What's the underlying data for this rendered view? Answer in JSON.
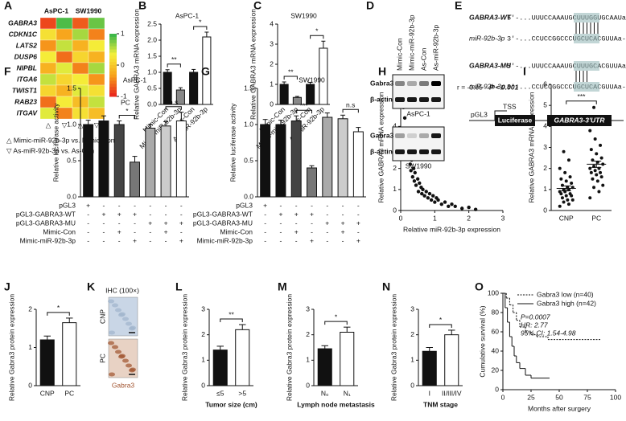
{
  "chart_data": [
    {
      "type": "heatmap",
      "panel": "A",
      "column_groups": [
        "AsPC-1",
        "SW1990"
      ],
      "rows": [
        "GABRA3",
        "CDKN1C",
        "LATS2",
        "DUSP6",
        "NIPBL",
        "ITGA6",
        "TWIST1",
        "RAB23",
        "ITGAV"
      ],
      "values": [
        [
          -0.8,
          0.9,
          -0.7,
          0.8
        ],
        [
          0.2,
          -0.3,
          0.6,
          -0.5
        ],
        [
          -0.4,
          0.5,
          -0.2,
          0.3
        ],
        [
          0.3,
          -0.6,
          0.1,
          -0.2
        ],
        [
          -0.2,
          0.4,
          -0.5,
          0.6
        ],
        [
          0.5,
          0.1,
          0.3,
          -0.4
        ],
        [
          0.1,
          -0.2,
          0.4,
          0.2
        ],
        [
          -0.6,
          0.3,
          -0.1,
          0.5
        ],
        [
          0.4,
          -0.5,
          0.2,
          -0.1
        ]
      ],
      "zlim": [
        -1,
        1
      ],
      "zticks": [
        1,
        0,
        -1
      ],
      "colors": [
        "#e8201c",
        "#f7a21b",
        "#f5f03a",
        "#2fb34a"
      ],
      "colorbar_label": "PC",
      "markers": [
        "△",
        "▽",
        "△",
        "▽"
      ],
      "legend": [
        "△  Mimic-miR-92b-3p vs. Mimic-Con",
        "▽  As-miR-92b-3p vs. As-Con"
      ]
    },
    {
      "type": "bar",
      "panel": "B",
      "title": "AsPC-1",
      "ylabel": "Relative GABRA3 mRNA expression",
      "categories": [
        "Mimic-Con",
        "Mimic-miR-92b-3p",
        "As-Con",
        "As-miR-92b-3p"
      ],
      "values": [
        1.0,
        0.45,
        1.0,
        2.1
      ],
      "errors": [
        0.08,
        0.07,
        0.09,
        0.15
      ],
      "colors": [
        "#111111",
        "#888888",
        "#111111",
        "#ffffff"
      ],
      "ylim": [
        0,
        2.5
      ],
      "yticks": [
        {
          "value": 0,
          "label": "0.0"
        },
        {
          "value": 0.5,
          "label": "0.5"
        },
        {
          "value": 1,
          "label": "1.0"
        },
        {
          "value": 1.5,
          "label": "1.5"
        },
        {
          "value": 2,
          "label": "2.0"
        },
        {
          "value": 2.5,
          "label": "2.5"
        }
      ],
      "annotations": [
        "**",
        "*"
      ]
    },
    {
      "type": "bar",
      "panel": "C",
      "title": "SW1990",
      "ylabel": "Relative GABRA3 mRNA expression",
      "categories": [
        "Mimic-Con",
        "Mimic-miR-92b-3p",
        "As-Con",
        "As-miR-92b-3p"
      ],
      "values": [
        1.0,
        0.35,
        1.0,
        2.8
      ],
      "errors": [
        0.12,
        0.05,
        0.1,
        0.35
      ],
      "colors": [
        "#111111",
        "#888888",
        "#111111",
        "#ffffff"
      ],
      "ylim": [
        0,
        4
      ],
      "yticks": [
        0,
        1,
        2,
        3,
        4
      ],
      "annotations": [
        "**",
        "*"
      ]
    },
    {
      "type": "bar",
      "panel": "F",
      "title": "AsPC-1",
      "ylabel": "Relative luciferase activity",
      "values": [
        1.0,
        1.05,
        1.0,
        0.48,
        0.95,
        0.98,
        1.05
      ],
      "errors": [
        0.06,
        0.07,
        0.05,
        0.08,
        0.05,
        0.06,
        0.12
      ],
      "colors": [
        "#111111",
        "#111111",
        "#444444",
        "#777777",
        "#aaaaaa",
        "#cccccc",
        "#ffffff"
      ],
      "ylim": [
        0,
        1.5
      ],
      "yticks": [
        {
          "value": 0,
          "label": "0.0"
        },
        {
          "value": 0.5,
          "label": "0.5"
        },
        {
          "value": 1,
          "label": "1.0"
        },
        {
          "value": 1.5,
          "label": "1.5"
        }
      ],
      "annotations": [
        "*",
        "n.s"
      ],
      "conditions": [
        {
          "name": "pGL3",
          "values": [
            "+",
            "-",
            "-",
            "-",
            "-",
            "-",
            "-"
          ]
        },
        {
          "name": "pGL3-GABRA3-WT",
          "values": [
            "-",
            "+",
            "+",
            "+",
            "-",
            "-",
            "-"
          ]
        },
        {
          "name": "pGL3-GABRA3-MU",
          "values": [
            "-",
            "-",
            "-",
            "-",
            "+",
            "+",
            "+"
          ]
        },
        {
          "name": "Mimic-Con",
          "values": [
            "-",
            "-",
            "+",
            "-",
            "-",
            "+",
            "-"
          ]
        },
        {
          "name": "Mimic-miR-92b-3p",
          "values": [
            "-",
            "-",
            "-",
            "+",
            "-",
            "-",
            "+"
          ]
        }
      ]
    },
    {
      "type": "bar",
      "panel": "G",
      "title": "SW1990",
      "ylabel": "Relative luciferase activity",
      "values": [
        1.0,
        1.0,
        1.05,
        0.4,
        1.1,
        1.08,
        0.9
      ],
      "errors": [
        0.07,
        0.06,
        0.07,
        0.03,
        0.06,
        0.05,
        0.06
      ],
      "colors": [
        "#111111",
        "#111111",
        "#444444",
        "#777777",
        "#aaaaaa",
        "#cccccc",
        "#ffffff"
      ],
      "ylim": [
        0,
        1.5
      ],
      "yticks": [
        {
          "value": 0,
          "label": "0.0"
        },
        {
          "value": 0.5,
          "label": "0.5"
        },
        {
          "value": 1,
          "label": "1.0"
        },
        {
          "value": 1.5,
          "label": "1.5"
        }
      ],
      "annotations": [
        "***",
        "n.s"
      ],
      "conditions": [
        {
          "name": "pGL3",
          "values": [
            "+",
            "-",
            "-",
            "-",
            "-",
            "-",
            "-"
          ]
        },
        {
          "name": "pGL3-GABRA3-WT",
          "values": [
            "-",
            "+",
            "+",
            "+",
            "-",
            "-",
            "-"
          ]
        },
        {
          "name": "pGL3-GABRA3-MU",
          "values": [
            "-",
            "-",
            "-",
            "-",
            "+",
            "+",
            "+"
          ]
        },
        {
          "name": "Mimic-Con",
          "values": [
            "-",
            "-",
            "+",
            "-",
            "-",
            "+",
            "-"
          ]
        },
        {
          "name": "Mimic-miR-92b-3p",
          "values": [
            "-",
            "-",
            "-",
            "+",
            "-",
            "-",
            "+"
          ]
        }
      ]
    },
    {
      "type": "scatter",
      "panel": "H",
      "xlabel": "Relative miR-92b-3p expression",
      "ylabel": "Relative GABRA3 mRNA expression",
      "x": [
        0.05,
        0.08,
        0.1,
        0.12,
        0.15,
        0.18,
        0.2,
        0.22,
        0.25,
        0.28,
        0.3,
        0.32,
        0.35,
        0.38,
        0.4,
        0.42,
        0.45,
        0.5,
        0.52,
        0.55,
        0.6,
        0.62,
        0.65,
        0.7,
        0.75,
        0.8,
        0.85,
        0.9,
        0.95,
        1.0,
        1.05,
        1.1,
        1.2,
        1.3,
        1.4,
        1.5,
        1.6,
        1.8,
        2.0,
        2.2
      ],
      "values": [
        5.6,
        4.9,
        3.8,
        4.4,
        3.5,
        2.9,
        3.1,
        2.5,
        2.7,
        2.2,
        1.9,
        2.4,
        1.6,
        2.0,
        1.4,
        1.8,
        1.2,
        1.5,
        0.9,
        1.3,
        1.1,
        0.8,
        1.0,
        0.7,
        0.9,
        0.6,
        0.8,
        0.5,
        0.7,
        0.4,
        0.6,
        0.5,
        0.3,
        0.4,
        0.2,
        0.3,
        0.2,
        0.1,
        0.15,
        0.05
      ],
      "xlim": [
        0,
        3
      ],
      "xticks": [
        0,
        1,
        2,
        3
      ],
      "ylim": [
        0,
        6
      ],
      "yticks": [
        0,
        1,
        2,
        3,
        4,
        5,
        6
      ],
      "annotations": [
        "r = -0.65",
        "P < 0.001"
      ]
    },
    {
      "type": "strip",
      "panel": "I",
      "ylabel": "Relative GABRA3 mRNA expression",
      "categories": [
        "CNP",
        "PC"
      ],
      "values": [
        [
          0.2,
          0.3,
          0.4,
          0.5,
          0.5,
          0.6,
          0.7,
          0.7,
          0.8,
          0.8,
          0.9,
          0.9,
          1.0,
          1.0,
          1.1,
          1.1,
          1.2,
          1.3,
          1.4,
          1.5,
          1.6,
          1.8,
          2.0,
          2.4,
          2.8
        ],
        [
          0.6,
          0.9,
          1.1,
          1.2,
          1.4,
          1.5,
          1.6,
          1.7,
          1.8,
          1.8,
          1.9,
          2.0,
          2.0,
          2.1,
          2.2,
          2.3,
          2.4,
          2.5,
          2.7,
          2.9,
          3.1,
          3.4,
          3.8,
          4.4,
          4.9
        ]
      ],
      "means": [
        1.05,
        2.2
      ],
      "errors": [
        0.12,
        0.15
      ],
      "ylim": [
        0,
        6
      ],
      "yticks": [
        0,
        1,
        2,
        3,
        4,
        5,
        6
      ],
      "annotations": [
        "***"
      ]
    },
    {
      "type": "bar",
      "panel": "J",
      "ylabel": "Relative Gabra3 protein expression",
      "categories": [
        "CNP",
        "PC"
      ],
      "values": [
        1.2,
        1.65
      ],
      "errors": [
        0.1,
        0.12
      ],
      "colors": [
        "#111111",
        "#ffffff"
      ],
      "ylim": [
        0,
        2
      ],
      "yticks": [
        0,
        1,
        2
      ],
      "annotations": [
        "*"
      ]
    },
    {
      "type": "bar",
      "panel": "L",
      "ylabel": "Relative Gabra3 protein expression",
      "xlabel": "Tumor size (cm)",
      "categories": [
        "≤5",
        ">5"
      ],
      "values": [
        1.4,
        2.2
      ],
      "errors": [
        0.15,
        0.2
      ],
      "colors": [
        "#111111",
        "#ffffff"
      ],
      "ylim": [
        0,
        3
      ],
      "yticks": [
        0,
        1,
        2,
        3
      ],
      "annotations": [
        "**"
      ]
    },
    {
      "type": "bar",
      "panel": "M",
      "ylabel": "Relative Gabra3 protein expression",
      "xlabel": "Lymph node metastasis",
      "categories": [
        "N₀",
        "N₁"
      ],
      "values": [
        1.45,
        2.1
      ],
      "errors": [
        0.12,
        0.2
      ],
      "colors": [
        "#111111",
        "#ffffff"
      ],
      "ylim": [
        0,
        3
      ],
      "yticks": [
        0,
        1,
        2,
        3
      ],
      "annotations": [
        "*"
      ]
    },
    {
      "type": "bar",
      "panel": "N",
      "ylabel": "Relative Gabra3 protein expression",
      "xlabel": "TNM stage",
      "categories": [
        "I",
        "II/III/IV"
      ],
      "values": [
        1.35,
        2.0
      ],
      "errors": [
        0.15,
        0.18
      ],
      "colors": [
        "#111111",
        "#ffffff"
      ],
      "ylim": [
        0,
        3
      ],
      "yticks": [
        0,
        1,
        2,
        3
      ],
      "annotations": [
        "*"
      ]
    },
    {
      "type": "survival",
      "panel": "O",
      "xlabel": "Months after surgery",
      "ylabel": "Cumulative survival (%)",
      "xlim": [
        0,
        100
      ],
      "xticks": [
        0,
        25,
        50,
        75,
        100
      ],
      "ylim": [
        0,
        100
      ],
      "yticks": [
        0,
        20,
        40,
        60,
        80,
        100
      ],
      "series": [
        {
          "name": "Gabra3 low (n=40)",
          "dashed": true,
          "x": [
            0,
            3,
            6,
            9,
            12,
            15,
            20,
            25,
            30,
            40,
            50,
            60,
            85
          ],
          "values": [
            100,
            95,
            88,
            80,
            72,
            65,
            60,
            57,
            55,
            52,
            52,
            52,
            52
          ]
        },
        {
          "name": "Gabra3 high (n=42)",
          "dashed": false,
          "x": [
            0,
            2,
            4,
            6,
            8,
            10,
            12,
            15,
            20,
            25,
            30,
            40
          ],
          "values": [
            100,
            85,
            70,
            55,
            45,
            35,
            28,
            22,
            15,
            12,
            12,
            12
          ]
        }
      ],
      "annotations": [
        "P=0.0007",
        "HR: 2.77",
        "95% CI: 1.54-4.98"
      ]
    }
  ],
  "blot": {
    "panel": "D",
    "lanes": [
      "Mimic-Con",
      "Mimic-miR-92b-3p",
      "As-Con",
      "As-miR-92b-3p"
    ],
    "cell_lines": [
      {
        "name": "AsPC-1",
        "rows": [
          "Gabra3",
          "β-actin"
        ]
      },
      {
        "name": "SW1990",
        "rows": [
          "Gabra3",
          "β-actin"
        ]
      }
    ]
  },
  "construct": {
    "panel": "E",
    "sequences": [
      {
        "label": "GABRA3-WT",
        "seq": "5'-...UUUCCAAAUGCUUUGGUGCAAUa-3'"
      },
      {
        "label": "miR-92b-3p",
        "seq": "3'-...CCUCCGGCCCUGCUCACGUUAa-5'"
      },
      {
        "label": "GABRA3-MU",
        "seq": "5'-...UUUCCAAAUGCUUUGCACGUUAa-3'"
      },
      {
        "label": "miR-92b-3p",
        "seq": "3'-...CCUCCGGCCCUGCUCACGUUAa-5'"
      }
    ],
    "vector": [
      "pGL3",
      "TSS",
      "Luciferase",
      "GABRA3-3'UTR"
    ]
  },
  "ihc": {
    "panel": "K",
    "title": "IHC (100×)",
    "rows": [
      "CNP",
      "PC"
    ],
    "stain": "Gabra3"
  }
}
